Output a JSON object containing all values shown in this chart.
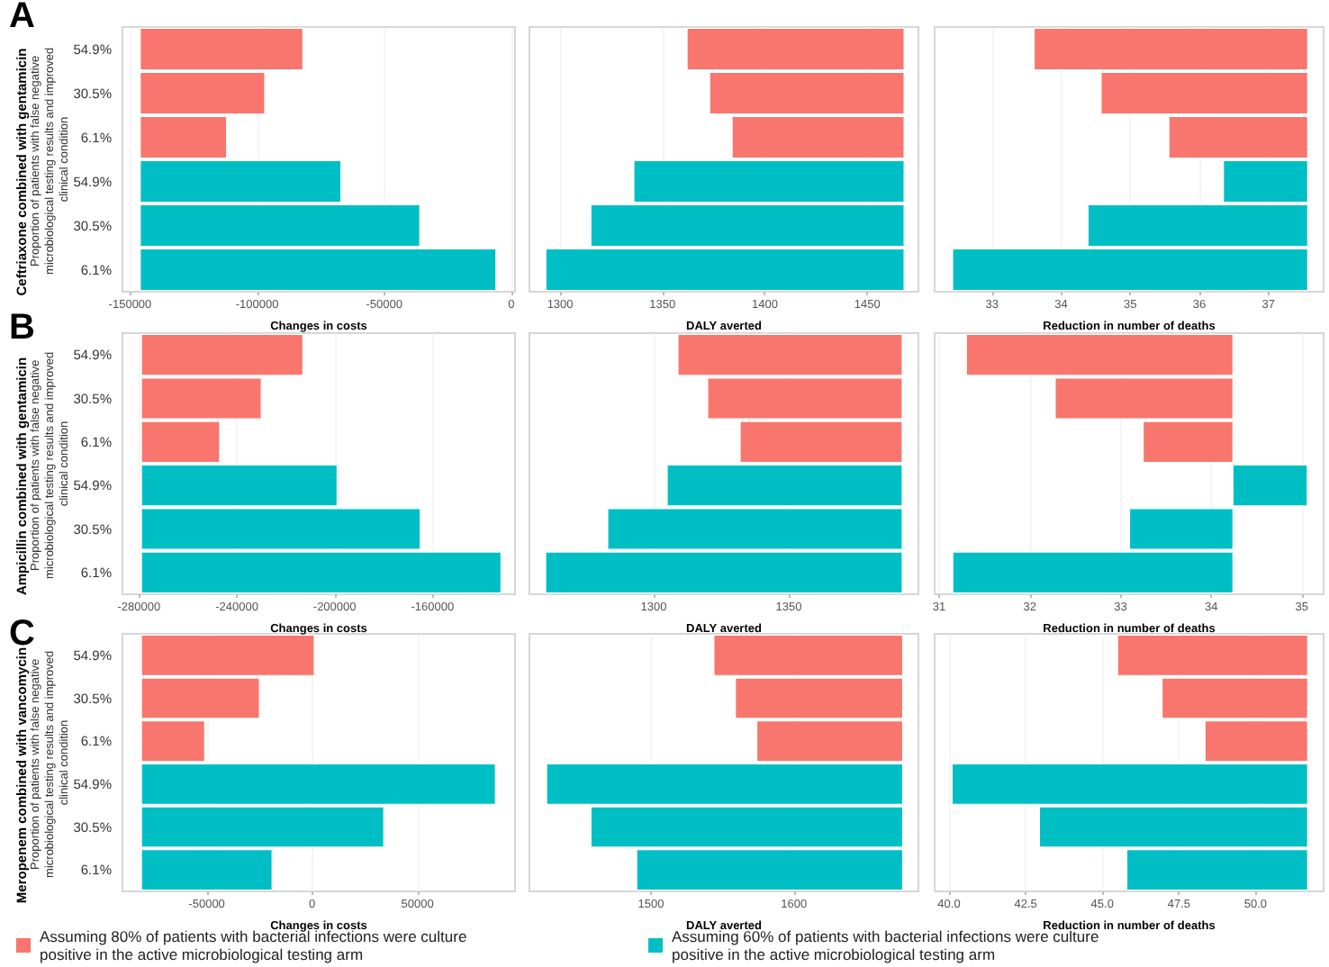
{
  "chart_data": [
    {
      "type": "bar",
      "title": "A",
      "subtitle": "Ceftriaxone combined with gentamicin",
      "ylabel": "Proportion of patients with false negative microbiological testing results and improved clinical condition",
      "xlabel": "Changes in costs",
      "orientation": "horizontal",
      "grid": "x",
      "categories": [
        "54.9%",
        "30.5%",
        "6.1%",
        "54.9%",
        "30.5%",
        "6.1%"
      ],
      "series": [
        {
          "color": "#f8766d",
          "base": [
            -146000,
            -146000,
            -146000,
            null,
            null,
            null
          ],
          "values": [
            64000,
            49000,
            34000,
            null,
            null,
            null
          ]
        },
        {
          "color": "#00bfc4",
          "base": [
            null,
            null,
            null,
            -146000,
            -146000,
            -146000
          ],
          "values": [
            null,
            null,
            null,
            79000,
            110000,
            140000
          ]
        }
      ],
      "xlim": [
        -153000,
        1500
      ],
      "xticks": [
        -150000,
        -100000,
        -50000,
        0
      ]
    },
    {
      "type": "bar",
      "xlabel": "DALY averted",
      "orientation": "horizontal",
      "grid": "x",
      "tick_labels": "x",
      "series": [
        {
          "color": "#f8766d",
          "base": [
            1468,
            1468,
            1468,
            null,
            null,
            null
          ],
          "values": [
            -106,
            -95,
            -84,
            null,
            null,
            null
          ]
        },
        {
          "color": "#00bfc4",
          "base": [
            null,
            null,
            null,
            1468,
            1468,
            1468
          ],
          "values": [
            null,
            null,
            null,
            -132,
            -153,
            -175
          ]
        }
      ],
      "xlim": [
        1285,
        1475
      ],
      "xticks": [
        1300,
        1350,
        1400,
        1450
      ]
    },
    {
      "type": "bar",
      "xlabel": "Reduction in number of deaths",
      "orientation": "horizontal",
      "grid": "x",
      "tick_labels": "x",
      "series": [
        {
          "color": "#f8766d",
          "base": [
            37.57,
            37.57,
            37.57,
            null,
            null,
            null
          ],
          "values": [
            -3.96,
            -2.99,
            -2.01,
            null,
            null,
            null
          ]
        },
        {
          "color": "#00bfc4",
          "base": [
            null,
            null,
            null,
            37.57,
            37.57,
            37.57
          ],
          "values": [
            null,
            null,
            null,
            -1.22,
            -3.18,
            -5.14
          ]
        }
      ],
      "xlim": [
        32.17,
        37.8
      ],
      "xticks": [
        33,
        34,
        35,
        36,
        37
      ]
    },
    {
      "type": "bar",
      "title": "B",
      "subtitle": "Ampicillin combined with gentamicin",
      "ylabel": "Proportion of patients with false negative microbiological testing results and improved clinical condition",
      "xlabel": "Changes in costs",
      "orientation": "horizontal",
      "grid": "x",
      "categories": [
        "54.9%",
        "30.5%",
        "6.1%",
        "54.9%",
        "30.5%",
        "6.1%"
      ],
      "series": [
        {
          "color": "#f8766d",
          "base": [
            -279000,
            -279000,
            -279000,
            null,
            null,
            null
          ],
          "values": [
            66000,
            49000,
            32000,
            null,
            null,
            null
          ]
        },
        {
          "color": "#00bfc4",
          "base": [
            null,
            null,
            null,
            -279000,
            -279000,
            -279000
          ],
          "values": [
            null,
            null,
            null,
            80000,
            114000,
            147000
          ]
        }
      ],
      "xlim": [
        -286750,
        -126250
      ],
      "xticks": [
        -280000,
        -240000,
        -200000,
        -160000
      ]
    },
    {
      "type": "bar",
      "xlabel": "DALY averted",
      "orientation": "horizontal",
      "grid": "x",
      "tick_labels": "x",
      "series": [
        {
          "color": "#f8766d",
          "base": [
            1392,
            1392,
            1392,
            null,
            null,
            null
          ],
          "values": [
            -83,
            -72,
            -60,
            null,
            null,
            null
          ]
        },
        {
          "color": "#00bfc4",
          "base": [
            null,
            null,
            null,
            1392,
            1392,
            1392
          ],
          "values": [
            null,
            null,
            null,
            -87,
            -109,
            -132
          ]
        }
      ],
      "xlim": [
        1254,
        1398
      ],
      "xticks": [
        1300,
        1350
      ]
    },
    {
      "type": "bar",
      "xlabel": "Reduction in number of deaths",
      "orientation": "horizontal",
      "grid": "x",
      "tick_labels": "x",
      "series": [
        {
          "color": "#f8766d",
          "base": [
            34.24,
            34.24,
            34.24,
            null,
            null,
            null
          ],
          "values": [
            -2.94,
            -1.96,
            -0.99,
            null,
            null,
            null
          ]
        },
        {
          "color": "#00bfc4",
          "base": [
            null,
            null,
            null,
            34.24,
            34.24,
            34.24
          ],
          "values": [
            null,
            null,
            null,
            0.82,
            -1.14,
            -3.09
          ]
        }
      ],
      "xlim": [
        30.95,
        35.24
      ],
      "xticks": [
        31,
        32,
        33,
        34,
        35
      ]
    },
    {
      "type": "bar",
      "title": "C",
      "subtitle": "Meropenem combined with vancomycin",
      "ylabel": "Proportion of patients with false negative microbiological testing results and improved clinical condition",
      "xlabel": "Changes in costs",
      "orientation": "horizontal",
      "grid": "x",
      "legend": "bottom",
      "categories": [
        "54.9%",
        "30.5%",
        "6.1%",
        "54.9%",
        "30.5%",
        "6.1%"
      ],
      "series": [
        {
          "name": "Assuming 80% of patients with bacterial infections were culture positive in the active microbiological testing arm",
          "color": "#f8766d",
          "base": [
            -81000,
            -81000,
            -81000,
            null,
            null,
            null
          ],
          "values": [
            82000,
            56000,
            30000,
            null,
            null,
            null
          ]
        },
        {
          "name": "Assuming 60% of patients with bacterial infections were culture positive in the active microbiological testing arm",
          "color": "#00bfc4",
          "base": [
            null,
            null,
            null,
            -81000,
            -81000,
            -81000
          ],
          "values": [
            null,
            null,
            null,
            168000,
            115000,
            62000
          ]
        }
      ],
      "xlim": [
        -90000,
        96300
      ],
      "xticks": [
        -50000,
        0,
        50000
      ]
    },
    {
      "type": "bar",
      "xlabel": "DALY averted",
      "orientation": "horizontal",
      "grid": "x",
      "tick_labels": "x",
      "series": [
        {
          "color": "#f8766d",
          "base": [
            1676,
            1676,
            1676,
            null,
            null,
            null
          ],
          "values": [
            -132,
            -117,
            -102,
            null,
            null,
            null
          ]
        },
        {
          "color": "#00bfc4",
          "base": [
            null,
            null,
            null,
            1676,
            1676,
            1676
          ],
          "values": [
            null,
            null,
            null,
            -249,
            -218,
            -186
          ]
        }
      ],
      "xlim": [
        1415,
        1687
      ],
      "xticks": [
        1500,
        1600
      ]
    },
    {
      "type": "bar",
      "xlabel": "Reduction in number of deaths",
      "orientation": "horizontal",
      "grid": "x",
      "tick_labels": "x",
      "series": [
        {
          "color": "#f8766d",
          "base": [
            51.7,
            51.7,
            51.7,
            null,
            null,
            null
          ],
          "values": [
            -6.2,
            -4.75,
            -3.35,
            null,
            null,
            null
          ]
        },
        {
          "color": "#00bfc4",
          "base": [
            null,
            null,
            null,
            51.7,
            51.7,
            51.7
          ],
          "values": [
            null,
            null,
            null,
            -11.6,
            -8.75,
            -5.9
          ]
        }
      ],
      "xlim": [
        39.53,
        52.22
      ],
      "xticks": [
        {
          "value": 40,
          "label": "40.0"
        },
        {
          "value": 42.5,
          "label": "42.5"
        },
        {
          "value": 45,
          "label": "45.0"
        },
        {
          "value": 47.5,
          "label": "47.5"
        },
        {
          "value": 50,
          "label": "50.0"
        }
      ]
    }
  ]
}
